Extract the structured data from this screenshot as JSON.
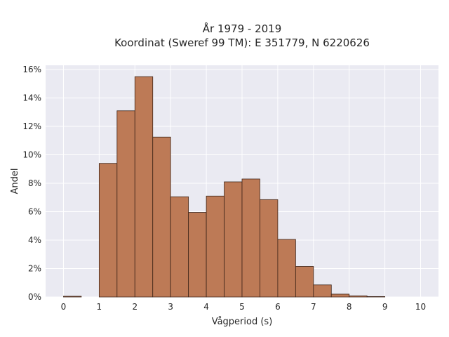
{
  "chart_data": {
    "type": "bar",
    "title_line1": "År 1979 - 2019",
    "title_line2": "Koordinat (Sweref 99 TM): E 351779, N 6220626",
    "xlabel": "Vågperiod (s)",
    "ylabel": "Andel",
    "xlim": [
      -0.5,
      10.5
    ],
    "ylim": [
      0,
      16.3
    ],
    "xticks": [
      0,
      1,
      2,
      3,
      4,
      5,
      6,
      7,
      8,
      9,
      10
    ],
    "yticks": [
      0,
      2,
      4,
      6,
      8,
      10,
      12,
      14,
      16
    ],
    "ytick_labels": [
      "0%",
      "2%",
      "4%",
      "6%",
      "8%",
      "10%",
      "12%",
      "14%",
      "16%"
    ],
    "bin_width": 0.5,
    "bins": [
      {
        "start": 0.0,
        "value": 0.05
      },
      {
        "start": 0.5,
        "value": 0.0
      },
      {
        "start": 1.0,
        "value": 9.4
      },
      {
        "start": 1.5,
        "value": 13.1
      },
      {
        "start": 2.0,
        "value": 15.5
      },
      {
        "start": 2.5,
        "value": 11.25
      },
      {
        "start": 3.0,
        "value": 7.05
      },
      {
        "start": 3.5,
        "value": 5.95
      },
      {
        "start": 4.0,
        "value": 7.1
      },
      {
        "start": 4.5,
        "value": 8.1
      },
      {
        "start": 5.0,
        "value": 8.3
      },
      {
        "start": 5.5,
        "value": 6.85
      },
      {
        "start": 6.0,
        "value": 4.05
      },
      {
        "start": 6.5,
        "value": 2.15
      },
      {
        "start": 7.0,
        "value": 0.85
      },
      {
        "start": 7.5,
        "value": 0.2
      },
      {
        "start": 8.0,
        "value": 0.08
      },
      {
        "start": 8.5,
        "value": 0.03
      }
    ],
    "grid": true,
    "colors": {
      "bar_fill": "#bd7a56",
      "bar_edge": "#3d2418",
      "plot_bg": "#eaeaf2",
      "grid": "#ffffff",
      "text": "#262626"
    }
  }
}
